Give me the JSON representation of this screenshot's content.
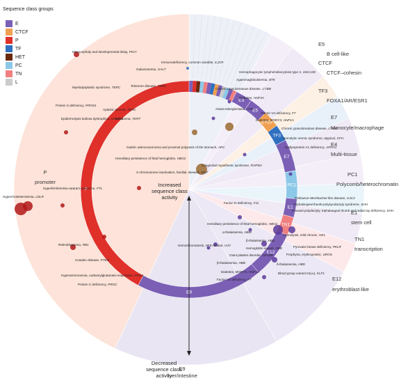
{
  "legend": {
    "title": "Sequence class groups",
    "items": [
      {
        "label": "E",
        "color": "#7b5fb5"
      },
      {
        "label": "CTCF",
        "color": "#f0a050"
      },
      {
        "label": "P",
        "color": "#e0302a"
      },
      {
        "label": "TF",
        "color": "#3070c0"
      },
      {
        "label": "HET",
        "color": "#6a2a10"
      },
      {
        "label": "PC",
        "color": "#8cc8e8"
      },
      {
        "label": "TN",
        "color": "#f08080"
      },
      {
        "label": "L",
        "color": "#cccccc"
      }
    ]
  },
  "ring_labels": [
    "E3",
    "E5",
    "CTCF",
    "TF3",
    "E7",
    "PC1",
    "E1",
    "TN1",
    "E12",
    "E9",
    "P"
  ],
  "sectors": [
    {
      "code": "E5",
      "name": "B cell-like"
    },
    {
      "code": "CTCF",
      "name": "CTCF–cohesin"
    },
    {
      "code": "TF3",
      "name": "FOXA1/AR/ESR1"
    },
    {
      "code": "E7",
      "name": "Monocyte/macrophage"
    },
    {
      "code": "E4",
      "name": "Multi-tissue"
    },
    {
      "code": "PC1",
      "name": "Polycomb/heterochromatin"
    },
    {
      "code": "E1",
      "name": "stem cell"
    },
    {
      "code": "TN1",
      "name": "transcription"
    },
    {
      "code": "E12",
      "name": "erythroblast-like"
    },
    {
      "code": "E9",
      "name": "liver/intestine"
    },
    {
      "code": "P",
      "name": "promoter"
    }
  ],
  "center": {
    "increased": "Increased sequence class activity",
    "decreased": "Decreased sequence class activity"
  },
  "annotations": [
    {
      "text": "Microcephaly and developmental delay,",
      "gene": "PIGY"
    },
    {
      "text": "Immunodeficiency, common variable,",
      "gene": "IL21R"
    },
    {
      "text": "Galactosemia,",
      "gene": "GALT"
    },
    {
      "text": "Myelodysplastic syndrome,",
      "gene": "TERC"
    },
    {
      "text": "Telomere disease,",
      "gene": "TERC"
    },
    {
      "text": "Protein S deficiency,",
      "gene": "PROS1"
    },
    {
      "text": "Aplastic anemia,",
      "gene": "TERC"
    },
    {
      "text": "Epidermolysis bullosa dystrophica,",
      "gene": "COL7A1"
    },
    {
      "text": "Melanoma,",
      "gene": "TERT"
    },
    {
      "text": "Hyperferritinemia-cataract syndrome,",
      "gene": "FTL"
    },
    {
      "text": "Hypercholesterolemia,",
      "gene": "LDLR"
    },
    {
      "text": "Retinoblastoma,",
      "gene": "RB1"
    },
    {
      "text": "Cowden disease,",
      "gene": "PTEN"
    },
    {
      "text": "Hyperammonemia, carbamylglutamate-responsive,",
      "gene": "NAGS"
    },
    {
      "text": "Protein C deficiency,",
      "gene": "PROC"
    },
    {
      "text": "Hemophagocytic lymphohistiocytosis type 3,",
      "gene": "UNC13D"
    },
    {
      "text": "Agammaglobulinemia,",
      "gene": "BTK"
    },
    {
      "text": "Chronic granulomatous disease,",
      "gene": "CYBB"
    },
    {
      "text": "Diabetes,",
      "gene": "HNF4A"
    },
    {
      "text": "Ataxia telangiectasia,",
      "gene": "ATM"
    },
    {
      "text": "Factor VII deficiency,",
      "gene": "F7"
    },
    {
      "text": "Diabetes, MODY3,",
      "gene": "HNF1A"
    },
    {
      "text": "Chronic granulomatous disease,",
      "gene": "CYBB"
    },
    {
      "text": "Hemolytic uremic syndrome, atypical,",
      "gene": "CFH"
    },
    {
      "text": "Apolipoprotein A1 deficiency,",
      "gene": "APOA1"
    },
    {
      "text": "Gastric adenocarcinoma and proximal polyposis of the stomach,",
      "gene": "APC"
    },
    {
      "text": "Hereditary persistence of fetal hemoglobin,",
      "gene": "HBG2"
    },
    {
      "text": "Congenital myasthenic syndrome,",
      "gene": "RAPSN"
    },
    {
      "text": "X-chromosome inactivation, familial, skewed,",
      "gene": "XIST"
    },
    {
      "text": "Factor XI deficiency,",
      "gene": "F11"
    },
    {
      "text": "Pelizaeus–Merzbacher-like disease,",
      "gene": "GJC2"
    },
    {
      "text": "Triphalangeal thumb-polysyndactyly syndrome,",
      "gene": "SHH"
    },
    {
      "text": "Preaxial polydactyly, triphalangeal thumb and radial ray deficiency,",
      "gene": "SHH"
    },
    {
      "text": "Hereditary persistence of fetal hemoglobin,",
      "gene": "HBG2"
    },
    {
      "text": "α-thalassemia,",
      "gene": "HBM"
    },
    {
      "text": "Hemolysis, mild chronic,",
      "gene": "HK1"
    },
    {
      "text": "Pyruvate kinase deficiency,",
      "gene": "PKLR"
    },
    {
      "text": "Porphyria, erythropoietic,",
      "gene": "UROS"
    },
    {
      "text": "β-thalassemia,",
      "gene": "HBD"
    },
    {
      "text": "Hemochromatosis, HFE-related,",
      "gene": "HJV"
    },
    {
      "text": "Hemoglobin variant,",
      "gene": "HBB"
    },
    {
      "text": "Giant platelet disorder,",
      "gene": "GP1BB"
    },
    {
      "text": "δ-thalassemia,",
      "gene": "HBD"
    },
    {
      "text": "Blood group variant In(Lu),",
      "gene": "KLF1"
    },
    {
      "text": "β-thalassemia,",
      "gene": "HBB"
    },
    {
      "text": "Diabetes, MODY3,",
      "gene": "HNF1A"
    },
    {
      "text": "Factor VII deficiency,",
      "gene": "F7"
    }
  ]
}
